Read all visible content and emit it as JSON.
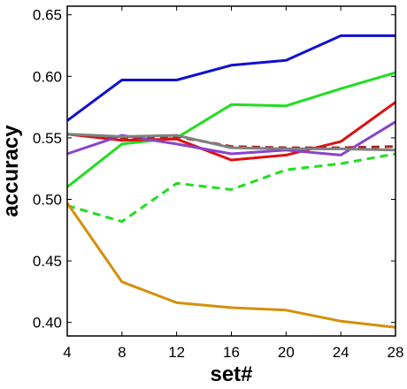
{
  "chart_data": {
    "type": "line",
    "title": "",
    "xlabel": "set#",
    "ylabel": "accuracy",
    "x": [
      4,
      8,
      12,
      16,
      20,
      24,
      28
    ],
    "xticks": [
      "4",
      "8",
      "12",
      "16",
      "20",
      "24",
      "28"
    ],
    "yticks": [
      "0.40",
      "0.45",
      "0.50",
      "0.55",
      "0.60",
      "0.65"
    ],
    "ylim": [
      0.389,
      0.657
    ],
    "grid": false,
    "legend": "none",
    "series": [
      {
        "color": "#1010d0",
        "dash": "solid",
        "values": [
          0.564,
          0.597,
          0.597,
          0.609,
          0.613,
          0.633,
          0.633
        ]
      },
      {
        "color": "#22dd22",
        "dash": "solid",
        "values": [
          0.51,
          0.545,
          0.55,
          0.577,
          0.576,
          0.59,
          0.603
        ]
      },
      {
        "color": "#dd1111",
        "dash": "solid",
        "values": [
          0.553,
          0.548,
          0.549,
          0.532,
          0.536,
          0.547,
          0.579
        ]
      },
      {
        "color": "#8844cc",
        "dash": "solid",
        "values": [
          0.537,
          0.552,
          0.545,
          0.537,
          0.54,
          0.536,
          0.563
        ]
      },
      {
        "color": "#aa2222",
        "dash": "dashed",
        "values": [
          0.553,
          0.55,
          0.551,
          0.543,
          0.542,
          0.542,
          0.543
        ]
      },
      {
        "color": "#808080",
        "dash": "solid",
        "values": [
          0.553,
          0.551,
          0.552,
          0.542,
          0.541,
          0.541,
          0.54
        ]
      },
      {
        "color": "#22dd22",
        "dash": "dashed",
        "values": [
          0.495,
          0.482,
          0.513,
          0.508,
          0.524,
          0.529,
          0.537
        ]
      },
      {
        "color": "#d4900a",
        "dash": "solid",
        "values": [
          0.497,
          0.433,
          0.416,
          0.412,
          0.41,
          0.401,
          0.396
        ]
      }
    ]
  }
}
